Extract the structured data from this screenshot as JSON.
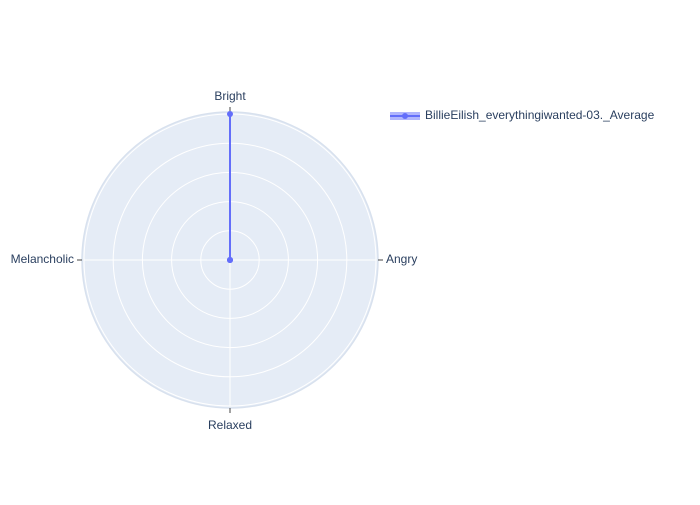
{
  "chart_data": {
    "type": "radar",
    "title": "",
    "axes": [
      "Bright",
      "Angry",
      "Relaxed",
      "Melancholic"
    ],
    "radial_range": [
      0,
      1
    ],
    "radial_gridlines": [
      0.2,
      0.4,
      0.6,
      0.8,
      1.0
    ],
    "grid": true,
    "legend_position": "top-right",
    "series": [
      {
        "name": "BillieEilish_everythingiwanted-03._Average",
        "values": [
          1.0,
          0.0,
          0.0,
          0.0
        ],
        "color": "#636efa",
        "fill": "toself"
      }
    ],
    "colors": {
      "polar_bg": "#e5ecf6",
      "grid": "#ffffff",
      "text": "#2a3f5f",
      "axis_tick": "#444444"
    }
  }
}
